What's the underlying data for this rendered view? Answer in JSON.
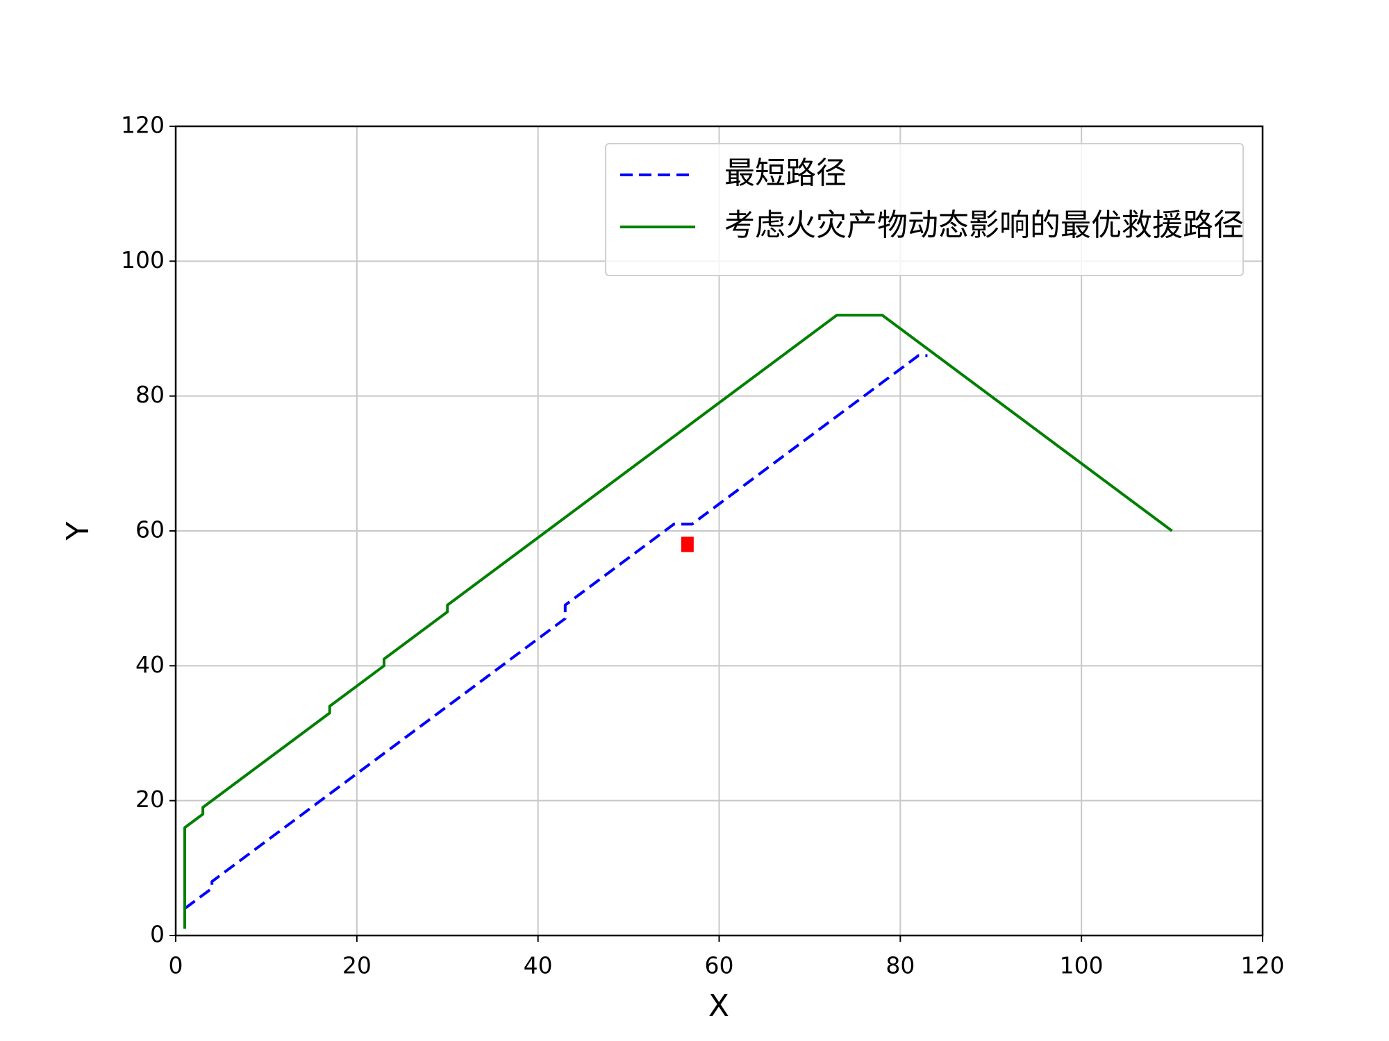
{
  "chart_data": {
    "type": "line",
    "xlabel": "X",
    "ylabel": "Y",
    "xlim": [
      0,
      120
    ],
    "ylim": [
      0,
      120
    ],
    "xticks": [
      0,
      20,
      40,
      60,
      80,
      100,
      120
    ],
    "yticks": [
      0,
      20,
      40,
      60,
      80,
      100,
      120
    ],
    "grid": true,
    "legend": "upper right",
    "series": [
      {
        "name": "最短路径",
        "color": "#0000ff",
        "dash": true,
        "x": [
          1,
          4,
          4,
          43,
          43,
          55,
          57,
          82,
          83
        ],
        "values": [
          4,
          7,
          8,
          47,
          49,
          61,
          61,
          86,
          86
        ]
      },
      {
        "name": "考虑火灾产物动态影响的最优救援路径",
        "color": "#008000",
        "dash": false,
        "x": [
          1,
          1,
          3,
          3,
          17,
          17,
          23,
          23,
          30,
          30,
          73,
          78,
          110
        ],
        "values": [
          1,
          16,
          18,
          19,
          33,
          34,
          40,
          41,
          48,
          49,
          92,
          92,
          60
        ]
      },
      {
        "color": "#ff0000",
        "marker": "square",
        "x": [
          56.5
        ],
        "values": [
          58
        ]
      }
    ]
  }
}
